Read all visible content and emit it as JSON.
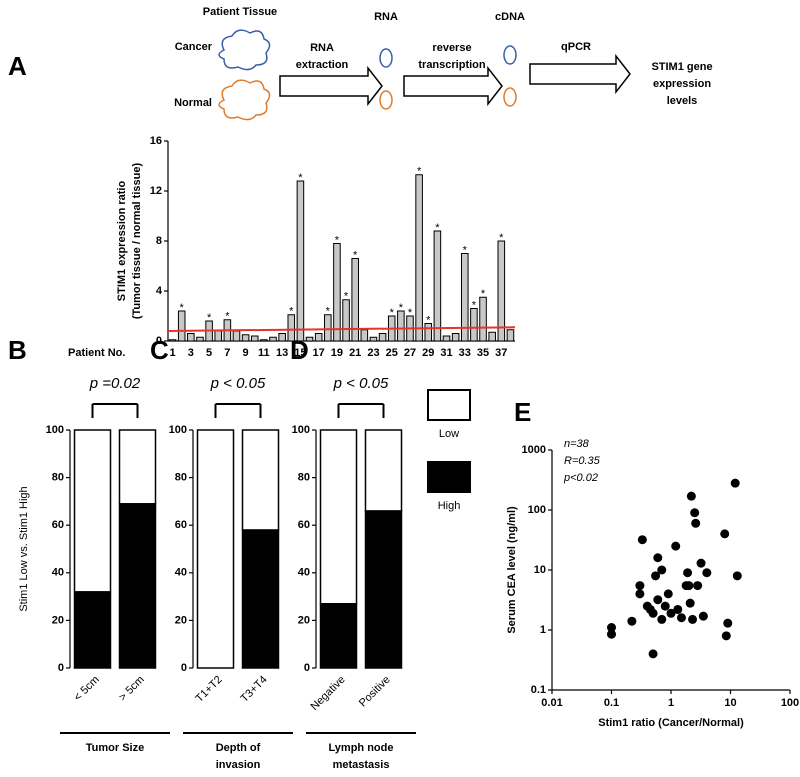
{
  "panel_labels": [
    "A",
    "B",
    "C",
    "D",
    "E"
  ],
  "diagram": {
    "tissue_title": "Patient Tissue",
    "cancer": "Cancer",
    "normal": "Normal",
    "step1": [
      "RNA",
      "extraction"
    ],
    "rna": "RNA",
    "step2": [
      "reverse",
      "transcription"
    ],
    "cdna": "cDNA",
    "step3": "qPCR",
    "result": [
      "STIM1 gene",
      "expression",
      "levels"
    ]
  },
  "chart_data": [
    {
      "type": "bar",
      "ylabel": [
        "STIM1 expression ratio",
        "(Tumor tissue / normal tissue)"
      ],
      "xlabel": "Patient No.",
      "categories": [
        "1",
        null,
        "3",
        null,
        "5",
        null,
        "7",
        null,
        "9",
        null,
        "11",
        null,
        "13",
        null,
        "15",
        null,
        "17",
        null,
        "19",
        null,
        "21",
        null,
        "23",
        null,
        "25",
        null,
        "27",
        null,
        "29",
        null,
        "31",
        null,
        "33",
        null,
        "35",
        null,
        "37",
        null
      ],
      "values": [
        0.1,
        2.4,
        0.6,
        0.3,
        1.6,
        0.8,
        1.7,
        0.8,
        0.5,
        0.4,
        0.1,
        0.3,
        0.6,
        2.1,
        12.8,
        0.3,
        0.6,
        2.1,
        7.8,
        3.3,
        6.6,
        0.9,
        0.3,
        0.6,
        2.0,
        2.4,
        2.0,
        13.3,
        1.4,
        8.8,
        0.4,
        0.6,
        7.0,
        2.6,
        3.5,
        0.7,
        8.0,
        0.9
      ],
      "asterisks": [
        null,
        "*",
        null,
        null,
        "*",
        null,
        "*",
        null,
        null,
        null,
        null,
        null,
        null,
        "*",
        "*",
        null,
        null,
        "*",
        "*",
        "*",
        "*",
        null,
        null,
        null,
        "*",
        "*",
        "*",
        "*",
        "*",
        "*",
        null,
        null,
        "*",
        "*",
        "*",
        null,
        "*",
        null
      ],
      "color": "#c8c8c8",
      "asterisk_color": "#e8322b",
      "reference_line": {
        "color": "#e8322b",
        "values": [
          0.8,
          1.1
        ]
      },
      "ylim": [
        0,
        16
      ],
      "yticks": [
        0,
        4,
        8,
        12,
        16
      ]
    },
    {
      "type": "stacked_bar",
      "ylabel": "Stim1 Low vs. Stim1 High",
      "annotation": "p =0.02",
      "xlabel": [
        "Tumor Size"
      ],
      "categories": [
        "< 5cm",
        "> 5cm"
      ],
      "series": [
        {
          "name": "High",
          "color": "#000000",
          "values": [
            32,
            69
          ]
        },
        {
          "name": "Low",
          "color": "#ffffff",
          "values": [
            68,
            31
          ]
        }
      ],
      "ylim": [
        0,
        100
      ],
      "yticks": [
        0,
        20,
        40,
        60,
        80,
        100
      ]
    },
    {
      "type": "stacked_bar",
      "annotation": "p < 0.05",
      "xlabel": [
        "Depth of",
        "invasion"
      ],
      "categories": [
        "T1+T2",
        "T3+T4"
      ],
      "series": [
        {
          "name": "High",
          "color": "#000000",
          "values": [
            0,
            58
          ]
        },
        {
          "name": "Low",
          "color": "#ffffff",
          "values": [
            100,
            42
          ]
        }
      ],
      "ylim": [
        0,
        100
      ],
      "yticks": [
        0,
        20,
        40,
        60,
        80,
        100
      ]
    },
    {
      "type": "stacked_bar",
      "annotation": "p < 0.05",
      "xlabel": [
        "Lymph node",
        "metastasis"
      ],
      "categories": [
        "Negative",
        "Positive"
      ],
      "series": [
        {
          "name": "High",
          "color": "#000000",
          "values": [
            27,
            66
          ]
        },
        {
          "name": "Low",
          "color": "#ffffff",
          "values": [
            73,
            34
          ]
        }
      ],
      "ylim": [
        0,
        100
      ],
      "yticks": [
        0,
        20,
        40,
        60,
        80,
        100
      ],
      "legend": "right"
    },
    {
      "type": "scatter",
      "xlabel": "Stim1 ratio (Cancer/Normal)",
      "ylabel": "Serum CEA level (ng/ml)",
      "annotations": [
        "n=38",
        "R=0.35",
        "p<0.02"
      ],
      "color": "#000000",
      "log_x": true,
      "log_y": true,
      "x": [
        0.1,
        0.1,
        0.22,
        0.3,
        0.3,
        0.33,
        0.4,
        0.45,
        0.5,
        0.5,
        0.55,
        0.6,
        0.6,
        0.7,
        0.7,
        0.8,
        0.9,
        1.0,
        1.2,
        1.3,
        1.5,
        1.8,
        1.9,
        2.0,
        2.1,
        2.2,
        2.3,
        2.5,
        2.6,
        2.8,
        3.2,
        3.5,
        4,
        8,
        8.5,
        9,
        12,
        13
      ],
      "y": [
        0.85,
        1.1,
        1.4,
        4,
        5.5,
        32,
        2.5,
        2.2,
        0.4,
        1.9,
        8,
        16,
        3.2,
        1.5,
        10,
        2.5,
        4,
        1.9,
        25,
        2.2,
        1.6,
        5.5,
        9,
        5.5,
        2.8,
        170,
        1.5,
        90,
        60,
        5.5,
        13,
        1.7,
        9,
        40,
        0.8,
        1.3,
        280,
        8
      ],
      "xlim": [
        0.01,
        100
      ],
      "xticks": [
        0.01,
        0.1,
        1,
        10,
        100
      ],
      "ylim": [
        0.1,
        1000
      ],
      "yticks": [
        0.1,
        1,
        10,
        100,
        1000
      ]
    }
  ]
}
